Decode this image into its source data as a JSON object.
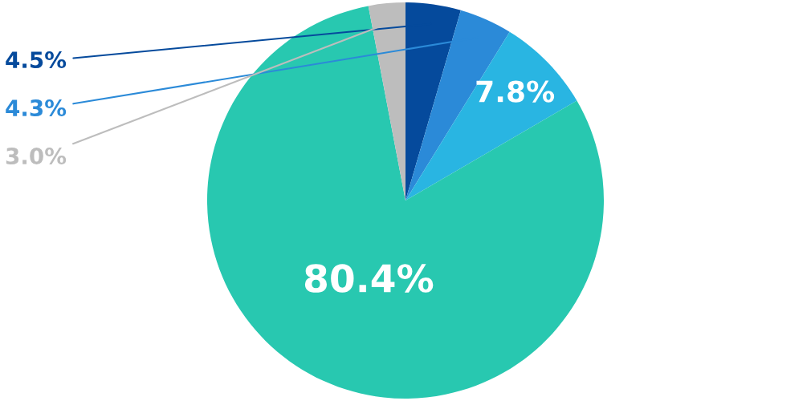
{
  "chart_data": {
    "type": "pie",
    "categories": [
      null,
      null,
      null,
      null,
      null
    ],
    "values": [
      4.5,
      4.3,
      7.8,
      80.4,
      3.0
    ],
    "colors": [
      "#054a9c",
      "#2b8ad8",
      "#29b5e2",
      "#28c8b0",
      "#bdbdbd"
    ],
    "value_labels": [
      "4.5%",
      "4.3%",
      "7.8%",
      "80.4%",
      "3.0%"
    ],
    "legend": false
  }
}
